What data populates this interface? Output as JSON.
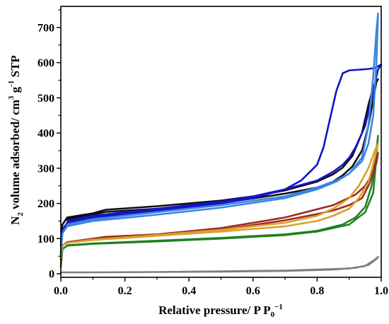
{
  "chart_data": {
    "type": "line",
    "title": "",
    "xlabel": {
      "main": "Relative pressure/ P P",
      "sub": "0",
      "sup": "−1"
    },
    "ylabel": {
      "p1": "N",
      "s1": "2",
      "p2": " volume adsorbed/ cm",
      "s2": "3",
      "p3": " g",
      "s3": "-1",
      "p4": " STP"
    },
    "xlim": [
      0,
      1
    ],
    "ylim": [
      -10,
      760
    ],
    "xticks": [
      "0.0",
      "0.2",
      "0.4",
      "0.6",
      "0.8",
      "1.0"
    ],
    "yticks": [
      "0",
      "100",
      "200",
      "300",
      "400",
      "500",
      "600",
      "700"
    ],
    "grid": false,
    "legend": "none",
    "series": [
      {
        "color": "#7f7f7f",
        "x": [
          0,
          0.005,
          0.1,
          0.3,
          0.5,
          0.7,
          0.85,
          0.92,
          0.96,
          0.985,
          0.99,
          0.98,
          0.95,
          0.9,
          0.7,
          0.5,
          0.3,
          0.1,
          0.005
        ],
        "y": [
          3,
          4,
          4,
          5,
          6,
          8,
          12,
          17,
          25,
          42,
          48,
          40,
          22,
          15,
          9,
          7,
          5,
          4,
          4
        ]
      },
      {
        "color": "#208020",
        "x": [
          0,
          0.005,
          0.02,
          0.1,
          0.3,
          0.5,
          0.7,
          0.8,
          0.9,
          0.95,
          0.975,
          0.985,
          0.99,
          0.985,
          0.97,
          0.95,
          0.92,
          0.88,
          0.8,
          0.7,
          0.5,
          0.3,
          0.1,
          0.02
        ],
        "y": [
          20,
          70,
          80,
          85,
          92,
          100,
          110,
          120,
          140,
          175,
          230,
          330,
          392,
          350,
          250,
          190,
          160,
          140,
          122,
          112,
          102,
          94,
          86,
          81
        ]
      },
      {
        "color": "#9c2a1e",
        "x": [
          0,
          0.005,
          0.02,
          0.1,
          0.14,
          0.3,
          0.5,
          0.7,
          0.85,
          0.92,
          0.95,
          0.97,
          0.985,
          0.99,
          0.98,
          0.96,
          0.94,
          0.9,
          0.85,
          0.8,
          0.7,
          0.5,
          0.3,
          0.1,
          0.02
        ],
        "y": [
          40,
          80,
          90,
          100,
          105,
          112,
          130,
          160,
          195,
          225,
          250,
          280,
          315,
          343,
          300,
          250,
          215,
          195,
          180,
          170,
          152,
          125,
          110,
          98,
          90
        ]
      },
      {
        "color": "#d7a22c",
        "x": [
          0,
          0.005,
          0.02,
          0.1,
          0.3,
          0.5,
          0.7,
          0.8,
          0.85,
          0.9,
          0.93,
          0.96,
          0.98,
          0.99,
          0.98,
          0.96,
          0.93,
          0.9,
          0.85,
          0.8,
          0.7,
          0.5,
          0.3,
          0.1,
          0.02
        ],
        "y": [
          45,
          80,
          88,
          97,
          110,
          125,
          145,
          165,
          185,
          215,
          250,
          300,
          350,
          370,
          330,
          260,
          215,
          185,
          165,
          150,
          135,
          120,
          108,
          96,
          88
        ]
      },
      {
        "color": "#101010",
        "x": [
          0,
          0.005,
          0.02,
          0.1,
          0.14,
          0.3,
          0.5,
          0.6,
          0.7,
          0.8,
          0.85,
          0.88,
          0.91,
          0.94,
          0.96,
          0.975,
          0.985,
          0.99,
          0.985,
          0.97,
          0.96,
          0.94,
          0.91,
          0.88,
          0.85,
          0.8,
          0.7,
          0.6,
          0.5,
          0.3,
          0.14,
          0.1,
          0.02
        ],
        "y": [
          80,
          140,
          160,
          172,
          182,
          192,
          208,
          220,
          237,
          262,
          283,
          302,
          335,
          400,
          480,
          530,
          548,
          553,
          545,
          470,
          420,
          350,
          305,
          280,
          262,
          245,
          228,
          214,
          202,
          185,
          176,
          168,
          155
        ]
      },
      {
        "color": "#1414c8",
        "x": [
          0,
          0.005,
          0.02,
          0.1,
          0.3,
          0.5,
          0.6,
          0.7,
          0.75,
          0.8,
          0.82,
          0.84,
          0.86,
          0.88,
          0.9,
          0.93,
          0.96,
          0.98,
          0.99,
          1.0,
          0.99,
          0.97,
          0.95,
          0.92,
          0.9,
          0.88,
          0.85,
          0.8,
          0.7,
          0.6,
          0.5,
          0.3,
          0.1,
          0.02
        ],
        "y": [
          60,
          125,
          145,
          160,
          180,
          200,
          215,
          240,
          265,
          310,
          360,
          440,
          520,
          570,
          578,
          580,
          582,
          585,
          590,
          595,
          580,
          500,
          420,
          360,
          330,
          310,
          290,
          265,
          240,
          220,
          205,
          185,
          165,
          150
        ]
      },
      {
        "color": "#3a86e0",
        "x": [
          0,
          0.005,
          0.02,
          0.1,
          0.3,
          0.5,
          0.7,
          0.8,
          0.86,
          0.9,
          0.94,
          0.96,
          0.975,
          0.985,
          0.99,
          0.985,
          0.975,
          0.96,
          0.94,
          0.9,
          0.86,
          0.8,
          0.7,
          0.5,
          0.3,
          0.1,
          0.02
        ],
        "y": [
          55,
          115,
          135,
          150,
          168,
          188,
          215,
          240,
          262,
          285,
          330,
          420,
          560,
          690,
          740,
          600,
          450,
          370,
          320,
          285,
          265,
          245,
          220,
          195,
          175,
          155,
          140
        ]
      }
    ]
  }
}
